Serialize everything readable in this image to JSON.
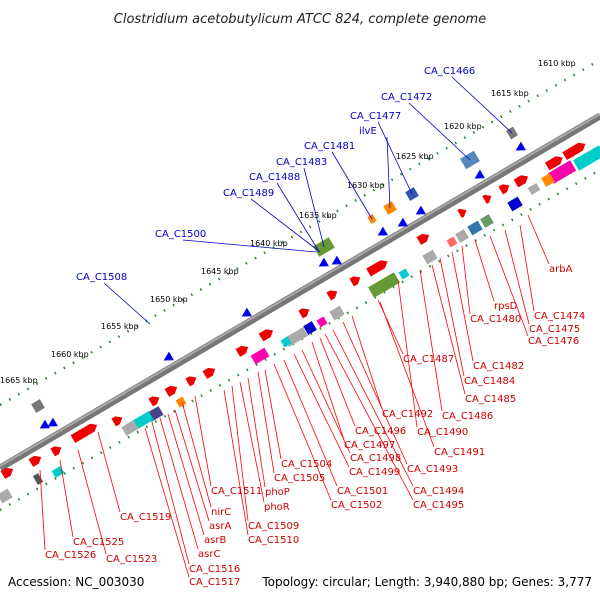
{
  "title": "Clostridium acetobutylicum ATCC 824, complete genome",
  "footer": {
    "accession": "Accession: NC_003030",
    "summary": "Topology: circular; Length: 3,940,880 bp; Genes: 3,777"
  },
  "colors": {
    "backbone": "#777777",
    "forward_gene": "#ee0000",
    "reverse_gene": "#0000ee",
    "upper_label": "#0000cc",
    "lower_label": "#cc0000",
    "ruler_dot": "#2a8a2a"
  },
  "ruler": [
    "1610 kbp",
    "1615 kbp",
    "1620 kbp",
    "1625 kbp",
    "1630 kbp",
    "1635 kbp",
    "1640 kbp",
    "1645 kbp",
    "1650 kbp",
    "1655 kbp",
    "1660 kbp",
    "1665 kbp"
  ],
  "upper_labels": [
    "CA_C1466",
    "CA_C1472",
    "CA_C1477",
    "ilvE",
    "CA_C1481",
    "CA_C1483",
    "CA_C1488",
    "CA_C1489",
    "CA_C1500",
    "CA_C1508"
  ],
  "lower_labels": [
    "arbA",
    "CA_C1474",
    "CA_C1475",
    "CA_C1476",
    "rpsD",
    "CA_C1480",
    "CA_C1482",
    "CA_C1484",
    "CA_C1487",
    "CA_C1485",
    "CA_C1486",
    "CA_C1490",
    "CA_C1491",
    "CA_C1492",
    "CA_C1493",
    "CA_C1494",
    "CA_C1495",
    "CA_C1496",
    "CA_C1497",
    "CA_C1498",
    "CA_C1499",
    "CA_C1501",
    "CA_C1502",
    "CA_C1504",
    "CA_C1505",
    "phoP",
    "phoR",
    "CA_C1509",
    "CA_C1510",
    "CA_C1511",
    "nirC",
    "asrA",
    "asrB",
    "asrC",
    "CA_C1516",
    "CA_C1517",
    "CA_C1519",
    "CA_C1523",
    "CA_C1525",
    "CA_C1526"
  ]
}
